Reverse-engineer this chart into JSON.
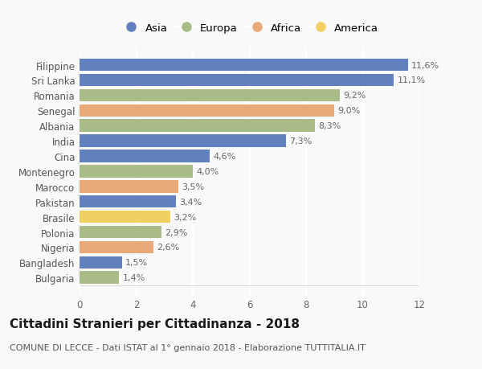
{
  "categories": [
    "Bulgaria",
    "Bangladesh",
    "Nigeria",
    "Polonia",
    "Brasile",
    "Pakistan",
    "Marocco",
    "Montenegro",
    "Cina",
    "India",
    "Albania",
    "Senegal",
    "Romania",
    "Sri Lanka",
    "Filippine"
  ],
  "values": [
    1.4,
    1.5,
    2.6,
    2.9,
    3.2,
    3.4,
    3.5,
    4.0,
    4.6,
    7.3,
    8.3,
    9.0,
    9.2,
    11.1,
    11.6
  ],
  "labels": [
    "1,4%",
    "1,5%",
    "2,6%",
    "2,9%",
    "3,2%",
    "3,4%",
    "3,5%",
    "4,0%",
    "4,6%",
    "7,3%",
    "8,3%",
    "9,0%",
    "9,2%",
    "11,1%",
    "11,6%"
  ],
  "continents": [
    "Europa",
    "Asia",
    "Africa",
    "Europa",
    "America",
    "Asia",
    "Africa",
    "Europa",
    "Asia",
    "Asia",
    "Europa",
    "Africa",
    "Europa",
    "Asia",
    "Asia"
  ],
  "colors": {
    "Asia": "#6080be",
    "Europa": "#a8bc88",
    "Africa": "#e8a878",
    "America": "#f0d060"
  },
  "legend_order": [
    "Asia",
    "Europa",
    "Africa",
    "America"
  ],
  "title": "Cittadini Stranieri per Cittadinanza - 2018",
  "subtitle": "COMUNE DI LECCE - Dati ISTAT al 1° gennaio 2018 - Elaborazione TUTTITALIA.IT",
  "xlim": [
    0,
    12
  ],
  "xticks": [
    0,
    2,
    4,
    6,
    8,
    10,
    12
  ],
  "background_color": "#f9f9f9",
  "bar_height": 0.82,
  "title_fontsize": 11,
  "subtitle_fontsize": 8,
  "tick_fontsize": 8.5,
  "label_fontsize": 8,
  "legend_fontsize": 9.5
}
